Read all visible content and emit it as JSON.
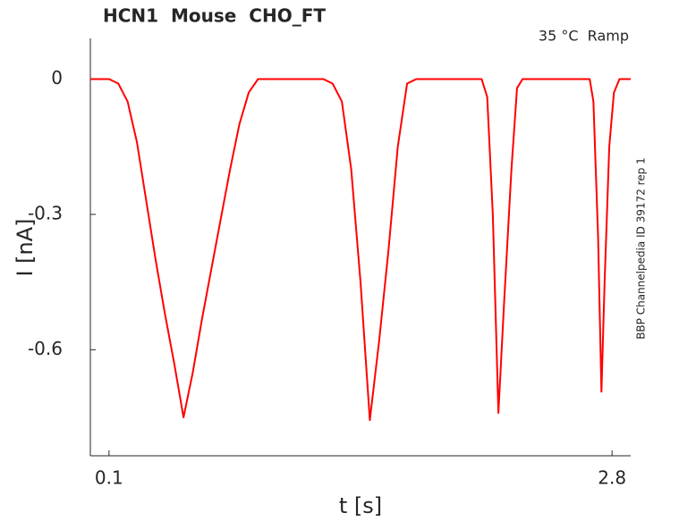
{
  "chart_data": {
    "type": "line",
    "title": "HCN1  Mouse  CHO_FT",
    "annotation": "35 °C  Ramp",
    "side_note": "BBP Channelpedia ID 39172 rep 1",
    "xlabel": "t [s]",
    "ylabel": "I [nA]",
    "x": [
      0,
      0.1,
      0.15,
      0.2,
      0.25,
      0.3,
      0.35,
      0.4,
      0.45,
      0.5,
      0.55,
      0.6,
      0.65,
      0.7,
      0.75,
      0.8,
      0.85,
      0.9,
      1.25,
      1.3,
      1.35,
      1.4,
      1.45,
      1.5,
      1.55,
      1.6,
      1.65,
      1.7,
      1.75,
      2.1,
      2.13,
      2.16,
      2.19,
      2.22,
      2.26,
      2.29,
      2.32,
      2.68,
      2.7,
      2.725,
      2.743,
      2.76,
      2.785,
      2.81,
      2.84,
      2.9
    ],
    "values": [
      0,
      0,
      -0.01,
      -0.05,
      -0.14,
      -0.27,
      -0.4,
      -0.52,
      -0.63,
      -0.75,
      -0.65,
      -0.53,
      -0.42,
      -0.31,
      -0.2,
      -0.1,
      -0.03,
      0,
      0,
      -0.01,
      -0.05,
      -0.2,
      -0.45,
      -0.756,
      -0.58,
      -0.38,
      -0.15,
      -0.01,
      0,
      0,
      -0.04,
      -0.3,
      -0.74,
      -0.5,
      -0.2,
      -0.02,
      0,
      0,
      -0.05,
      -0.35,
      -0.693,
      -0.45,
      -0.15,
      -0.03,
      0,
      0
    ],
    "color": "#ff0000",
    "xlim": [
      0,
      2.9
    ],
    "ylim": [
      -0.835,
      0.09
    ],
    "xticks": [
      0.1,
      2.8
    ],
    "yticks": [
      -0.6,
      -0.3,
      0
    ]
  }
}
